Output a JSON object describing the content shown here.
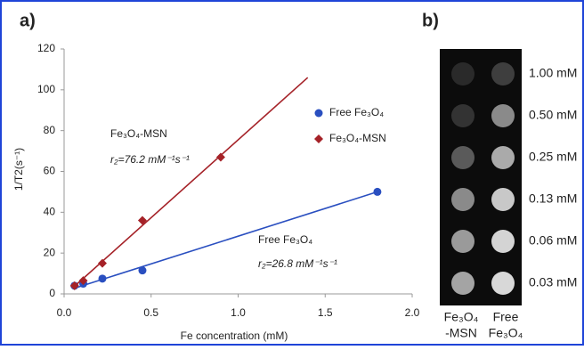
{
  "chart_data": {
    "type": "scatter",
    "x_label": "Fe concentration (mM)",
    "y_label": "1/T2(s⁻¹)",
    "xlim": [
      0,
      2
    ],
    "xticks": [
      {
        "value": 0,
        "label": "0.0"
      },
      0.5,
      {
        "value": 1,
        "label": "1.0"
      },
      1.5,
      {
        "value": 2,
        "label": "2.0"
      }
    ],
    "ylim": [
      0,
      120
    ],
    "yticks": [
      0,
      20,
      40,
      60,
      80,
      100,
      120
    ],
    "legend": "upper right",
    "series": [
      {
        "name": "Free Fe₃O₄",
        "color": "#2a4fc0",
        "marker": "circle",
        "x": [
          0.06,
          0.11,
          0.22,
          0.45,
          1.8
        ],
        "values": [
          4,
          5,
          7.5,
          11.5,
          50
        ],
        "fit": {
          "x": [
            0.05,
            1.8
          ],
          "y": [
            2.5,
            50
          ]
        }
      },
      {
        "name": "Fe₃O₄-MSN",
        "color": "#a52228",
        "marker": "diamond",
        "x": [
          0.06,
          0.11,
          0.22,
          0.45,
          0.9
        ],
        "values": [
          4,
          6.5,
          15,
          36,
          67
        ],
        "fit": {
          "x": [
            0.05,
            1.4
          ],
          "y": [
            3,
            106
          ]
        }
      }
    ],
    "annotations": [
      {
        "text": "Fe₃O₄-MSN"
      },
      {
        "text": "r₂=76.2 mM⁻¹s⁻¹"
      },
      {
        "text": "Free Fe₃O₄"
      },
      {
        "text": "r₂=26.8 mM⁻¹s⁻¹"
      }
    ]
  },
  "panel_labels": [
    "a)",
    "b)"
  ],
  "mri": {
    "rows": [
      "1.00 mM",
      "0.50 mM",
      "0.25 mM",
      "0.13 mM",
      "0.06 mM",
      "0.03 mM"
    ],
    "columns": [
      [
        "Fe₃O₄",
        "-MSN"
      ],
      [
        "Free",
        "Fe₃O₄"
      ]
    ]
  }
}
